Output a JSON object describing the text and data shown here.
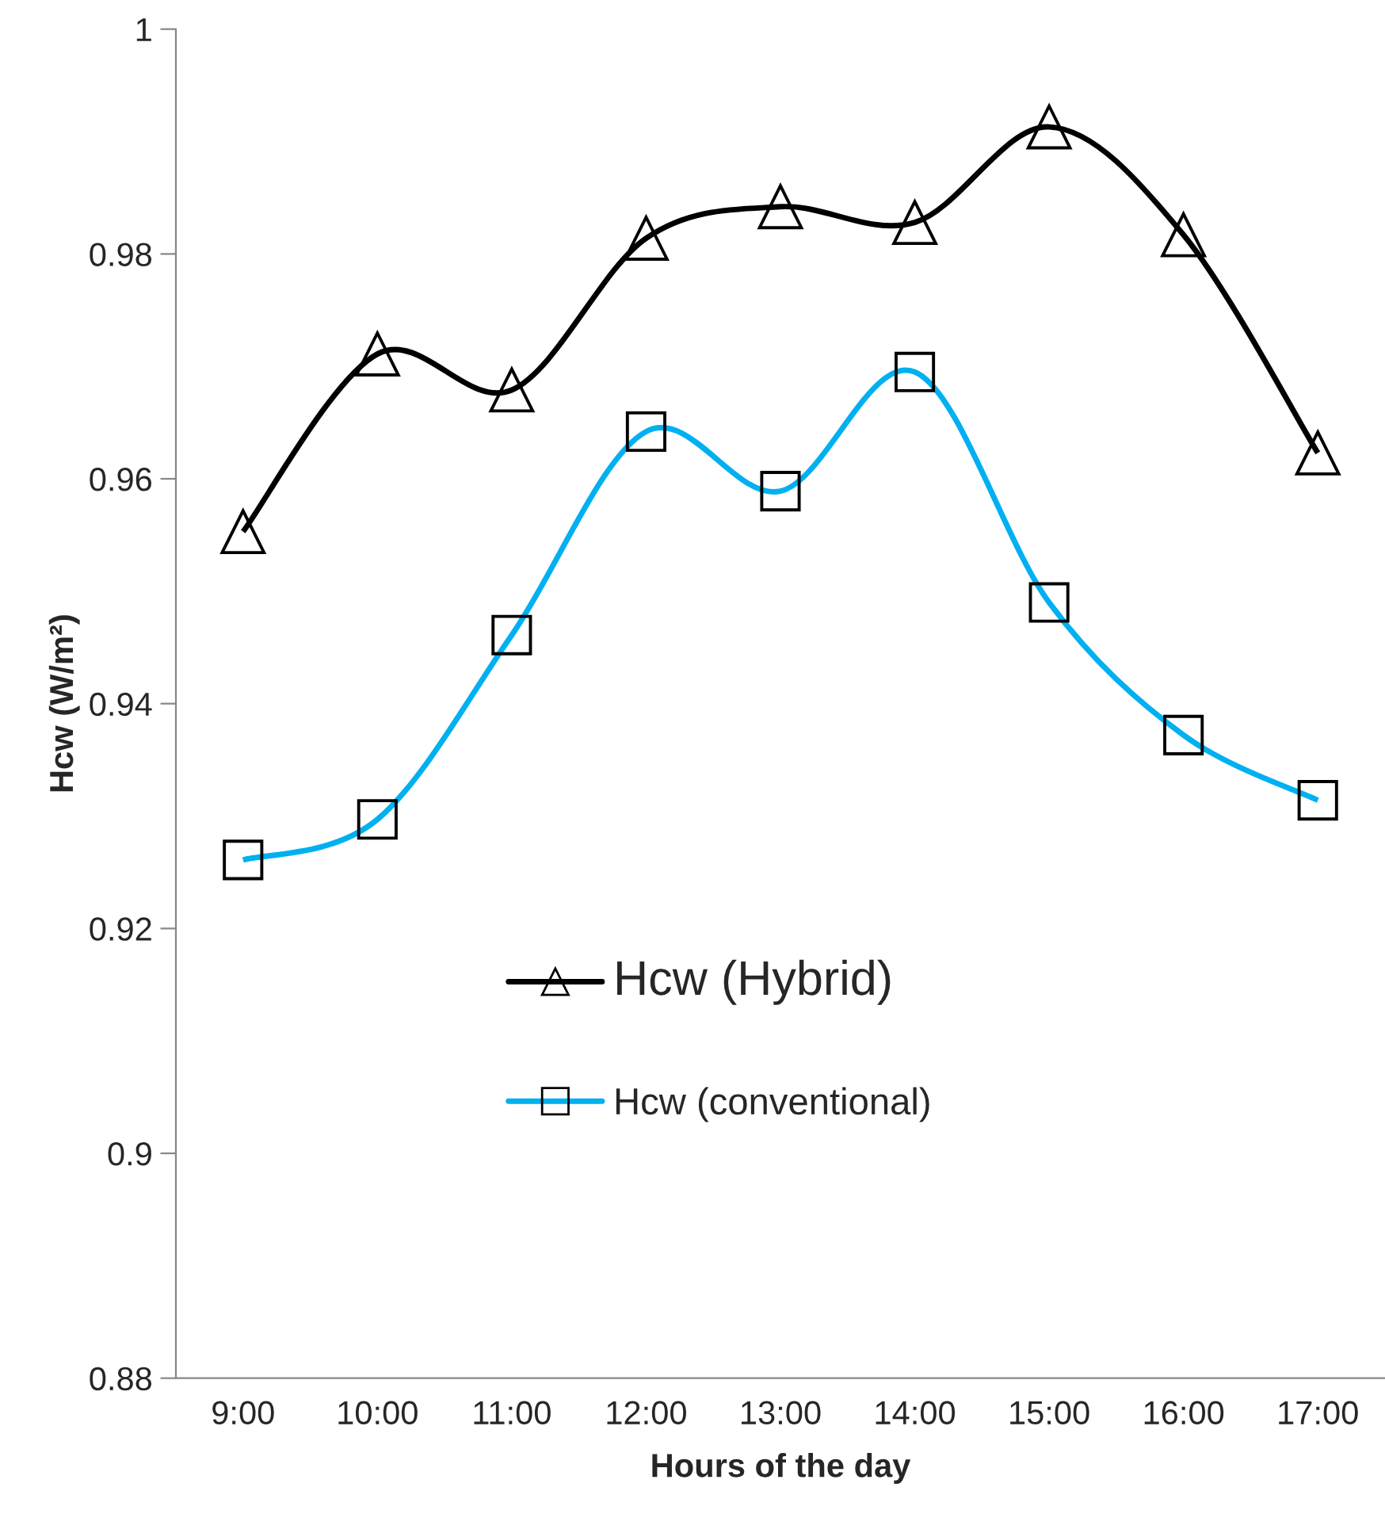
{
  "chart_data": {
    "type": "line",
    "xlabel": "Hours of the day",
    "ylabel": "Hcw (W/m²)",
    "categories": [
      "9:00",
      "10:00",
      "11:00",
      "12:00",
      "13:00",
      "14:00",
      "15:00",
      "16:00",
      "17:00"
    ],
    "series": [
      {
        "name": "Hcw (Hybrid)",
        "color": "#000000",
        "marker": "triangle",
        "values": [
          0.9553,
          0.9711,
          0.9679,
          0.9814,
          0.9842,
          0.9828,
          0.9913,
          0.9817,
          0.9623
        ]
      },
      {
        "name": "Hcw (conventional)",
        "color": "#00b0f0",
        "marker": "square",
        "values": [
          0.9261,
          0.9297,
          0.9461,
          0.9642,
          0.9589,
          0.9695,
          0.949,
          0.9372,
          0.9314
        ]
      }
    ],
    "ylim": [
      0.88,
      1
    ],
    "yticks": [
      0.88,
      0.9,
      0.92,
      0.94,
      0.96,
      0.98,
      1
    ],
    "grid": false,
    "legend": "center",
    "line_style": "solid"
  }
}
